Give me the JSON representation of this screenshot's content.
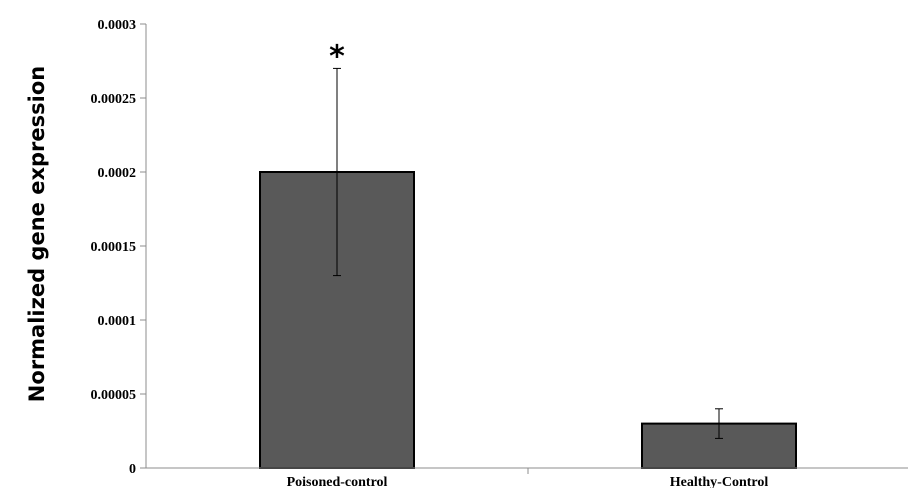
{
  "chart_data": {
    "type": "bar",
    "title": "",
    "xlabel": "",
    "ylabel": "Normalized gene expression",
    "categories": [
      "Poisoned-control",
      "Healthy-Control"
    ],
    "values": [
      0.0002,
      3e-05
    ],
    "errors": [
      7e-05,
      1e-05
    ],
    "annotations": [
      "*",
      ""
    ],
    "ylim": [
      0,
      0.0003
    ],
    "yticks": [
      0,
      5e-05,
      0.0001,
      0.00015,
      0.0002,
      0.00025,
      0.0003
    ],
    "ytick_labels": [
      "0",
      "0.00005",
      "0.0001",
      "0.00015",
      "0.0002",
      "0.00025",
      "0.0003"
    ],
    "grid": false,
    "bar_color": "#595959",
    "bar_edge_color": "#000000"
  }
}
